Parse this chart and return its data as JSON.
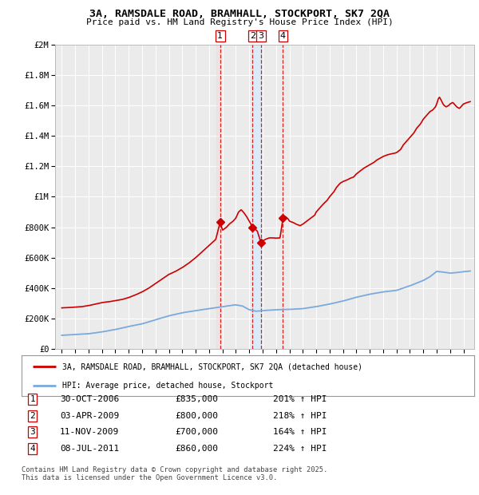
{
  "title": "3A, RAMSDALE ROAD, BRAMHALL, STOCKPORT, SK7 2QA",
  "subtitle": "Price paid vs. HM Land Registry's House Price Index (HPI)",
  "footnote": "Contains HM Land Registry data © Crown copyright and database right 2025.\nThis data is licensed under the Open Government Licence v3.0.",
  "legend_red": "3A, RAMSDALE ROAD, BRAMHALL, STOCKPORT, SK7 2QA (detached house)",
  "legend_blue": "HPI: Average price, detached house, Stockport",
  "transactions": [
    {
      "num": 1,
      "date": "30-OCT-2006",
      "price": "£835,000",
      "hpi_pct": "201%",
      "x_year": 2006.83,
      "marker_y": 835000
    },
    {
      "num": 2,
      "date": "03-APR-2009",
      "price": "£800,000",
      "hpi_pct": "218%",
      "x_year": 2009.25,
      "marker_y": 800000
    },
    {
      "num": 3,
      "date": "11-NOV-2009",
      "price": "£700,000",
      "hpi_pct": "164%",
      "x_year": 2009.87,
      "marker_y": 700000
    },
    {
      "num": 4,
      "date": "08-JUL-2011",
      "price": "£860,000",
      "hpi_pct": "224%",
      "x_year": 2011.52,
      "marker_y": 860000
    }
  ],
  "background_color": "#ffffff",
  "plot_bg_color": "#ebebeb",
  "grid_color": "#ffffff",
  "red_line_color": "#cc0000",
  "blue_line_color": "#7aaadd",
  "vspan_blue_color": "#daeaf7",
  "transaction_box_color": "#cc0000",
  "ylim": [
    0,
    2000000
  ],
  "ytick_max": 2000000,
  "xlim_start": 1994.5,
  "xlim_end": 2025.8
}
